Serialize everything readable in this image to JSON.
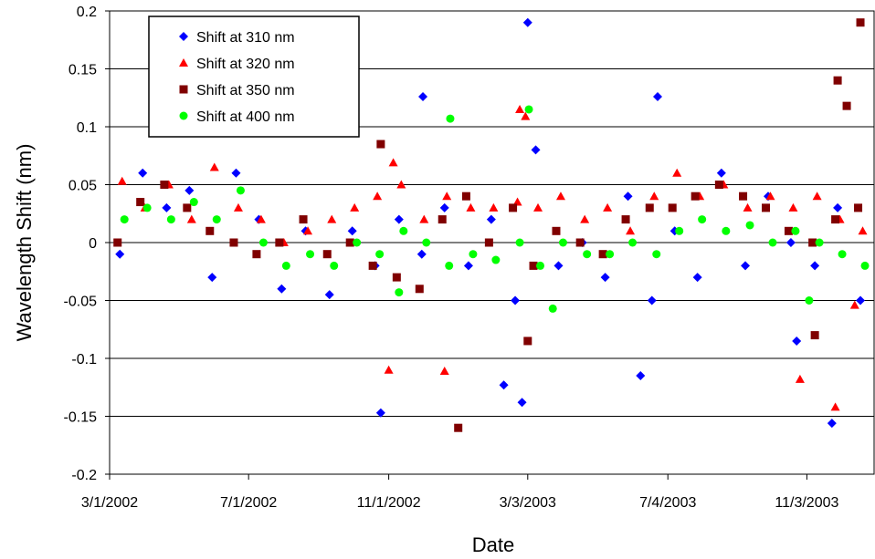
{
  "chart_data": {
    "type": "scatter",
    "x_label": "Date",
    "y_label": "Wavelength Shift (nm)",
    "xlim": [
      "2002-03-01",
      "2004-01-01"
    ],
    "xticks": [
      {
        "value": "2002-03-01",
        "label": "3/1/2002"
      },
      {
        "value": "2002-07-01",
        "label": "7/1/2002"
      },
      {
        "value": "2002-11-01",
        "label": "11/1/2002"
      },
      {
        "value": "2003-03-03",
        "label": "3/3/2003"
      },
      {
        "value": "2003-07-04",
        "label": "7/4/2003"
      },
      {
        "value": "2003-11-03",
        "label": "11/3/2003"
      }
    ],
    "ylim": [
      -0.2,
      0.2
    ],
    "yticks": [
      -0.2,
      -0.15,
      -0.1,
      -0.05,
      0,
      0.05,
      0.1,
      0.15,
      0.2
    ],
    "grid": true,
    "legend": "upper left",
    "series": [
      {
        "name": "Shift at 310 nm",
        "color": "#0000ff",
        "marker": "diamond",
        "x": [
          "2002-03-10",
          "2002-03-30",
          "2002-04-20",
          "2002-05-10",
          "2002-05-30",
          "2002-06-20",
          "2002-07-10",
          "2002-07-30",
          "2002-08-20",
          "2002-09-10",
          "2002-09-30",
          "2002-10-20",
          "2002-11-10",
          "2002-11-30",
          "2002-12-20",
          "2003-01-10",
          "2003-01-30",
          "2003-02-20",
          "2003-03-10",
          "2003-03-30",
          "2003-04-20",
          "2003-05-10",
          "2003-05-30",
          "2003-06-20",
          "2003-07-10",
          "2003-07-30",
          "2003-08-20",
          "2003-09-10",
          "2003-09-30",
          "2003-10-20",
          "2003-11-10",
          "2003-11-30",
          "2003-12-20",
          "2002-10-25",
          "2002-12-01",
          "2003-02-26",
          "2003-03-03",
          "2003-06-10",
          "2003-06-25",
          "2003-11-25",
          "2003-10-25",
          "2003-02-10"
        ],
        "values": [
          -0.01,
          0.06,
          0.03,
          0.045,
          -0.03,
          0.06,
          0.02,
          -0.04,
          0.01,
          -0.045,
          0.01,
          -0.02,
          0.02,
          -0.01,
          0.03,
          -0.02,
          0.02,
          -0.05,
          0.08,
          -0.02,
          0.0,
          -0.03,
          0.04,
          -0.05,
          0.01,
          -0.03,
          0.06,
          -0.02,
          0.04,
          0.0,
          -0.02,
          0.03,
          -0.05,
          -0.147,
          0.126,
          -0.138,
          0.19,
          -0.115,
          0.126,
          -0.156,
          -0.085,
          -0.123
        ]
      },
      {
        "name": "Shift at 320 nm",
        "color": "#ff0000",
        "marker": "triangle",
        "x": [
          "2002-03-12",
          "2002-04-01",
          "2002-04-22",
          "2002-05-12",
          "2002-06-01",
          "2002-06-22",
          "2002-07-12",
          "2002-08-01",
          "2002-08-22",
          "2002-09-12",
          "2002-10-02",
          "2002-10-22",
          "2002-11-12",
          "2002-12-02",
          "2002-12-22",
          "2003-01-12",
          "2003-02-01",
          "2003-02-22",
          "2003-03-12",
          "2003-04-01",
          "2003-04-22",
          "2003-05-12",
          "2003-06-01",
          "2003-06-22",
          "2003-07-12",
          "2003-08-01",
          "2003-08-22",
          "2003-09-12",
          "2003-10-02",
          "2003-10-22",
          "2003-11-12",
          "2003-12-02",
          "2003-12-22",
          "2002-11-01",
          "2002-12-20",
          "2002-11-05",
          "2003-02-24",
          "2003-03-01",
          "2003-10-28",
          "2003-11-28",
          "2003-12-15"
        ],
        "values": [
          0.053,
          0.03,
          0.05,
          0.02,
          0.065,
          0.03,
          0.02,
          0.0,
          0.01,
          0.02,
          0.03,
          0.04,
          0.05,
          0.02,
          0.04,
          0.03,
          0.03,
          0.035,
          0.03,
          0.04,
          0.02,
          0.03,
          0.01,
          0.04,
          0.06,
          0.04,
          0.05,
          0.03,
          0.04,
          0.03,
          0.04,
          0.02,
          0.01,
          -0.11,
          -0.111,
          0.069,
          0.115,
          0.109,
          -0.118,
          -0.142,
          -0.054
        ]
      },
      {
        "name": "Shift at 350 nm",
        "color": "#800000",
        "marker": "square",
        "x": [
          "2002-03-08",
          "2002-03-28",
          "2002-04-18",
          "2002-05-08",
          "2002-05-28",
          "2002-06-18",
          "2002-07-08",
          "2002-07-28",
          "2002-08-18",
          "2002-09-08",
          "2002-09-28",
          "2002-10-18",
          "2002-11-08",
          "2002-11-28",
          "2002-12-18",
          "2003-01-08",
          "2003-01-28",
          "2003-02-18",
          "2003-03-08",
          "2003-03-28",
          "2003-04-18",
          "2003-05-08",
          "2003-05-28",
          "2003-06-18",
          "2003-07-08",
          "2003-07-28",
          "2003-08-18",
          "2003-09-08",
          "2003-09-28",
          "2003-10-18",
          "2003-11-08",
          "2003-11-28",
          "2003-12-18",
          "2002-10-25",
          "2003-01-01",
          "2003-03-03",
          "2003-11-30",
          "2003-12-08",
          "2003-12-20",
          "2003-11-10"
        ],
        "values": [
          0.0,
          0.035,
          0.05,
          0.03,
          0.01,
          0.0,
          -0.01,
          0.0,
          0.02,
          -0.01,
          0.0,
          -0.02,
          -0.03,
          -0.04,
          0.02,
          0.04,
          0.0,
          0.03,
          -0.02,
          0.01,
          0.0,
          -0.01,
          0.02,
          0.03,
          0.03,
          0.04,
          0.05,
          0.04,
          0.03,
          0.01,
          0.0,
          0.02,
          0.03,
          0.085,
          -0.16,
          -0.085,
          0.14,
          0.118,
          0.19,
          -0.08
        ]
      },
      {
        "name": "Shift at 400 nm",
        "color": "#00ff00",
        "marker": "circle",
        "x": [
          "2002-03-14",
          "2002-04-03",
          "2002-04-24",
          "2002-05-14",
          "2002-06-03",
          "2002-06-24",
          "2002-07-14",
          "2002-08-03",
          "2002-08-24",
          "2002-09-14",
          "2002-10-04",
          "2002-10-24",
          "2002-11-14",
          "2002-12-04",
          "2002-12-24",
          "2003-01-14",
          "2003-02-03",
          "2003-02-24",
          "2003-03-14",
          "2003-04-03",
          "2003-04-24",
          "2003-05-14",
          "2003-06-03",
          "2003-06-24",
          "2003-07-14",
          "2003-08-03",
          "2003-08-24",
          "2003-09-14",
          "2003-10-04",
          "2003-10-24",
          "2003-11-14",
          "2003-12-04",
          "2003-12-24",
          "2002-12-25",
          "2003-03-04",
          "2003-03-25",
          "2003-11-05",
          "2002-11-10"
        ],
        "values": [
          0.02,
          0.03,
          0.02,
          0.035,
          0.02,
          0.045,
          0.0,
          -0.02,
          -0.01,
          -0.02,
          0.0,
          -0.01,
          0.01,
          0.0,
          -0.02,
          -0.01,
          -0.015,
          0.0,
          -0.02,
          0.0,
          -0.01,
          -0.01,
          0.0,
          -0.01,
          0.01,
          0.02,
          0.01,
          0.015,
          0.0,
          0.01,
          0.0,
          -0.01,
          -0.02,
          0.107,
          0.115,
          -0.057,
          -0.05,
          -0.043
        ]
      }
    ]
  }
}
